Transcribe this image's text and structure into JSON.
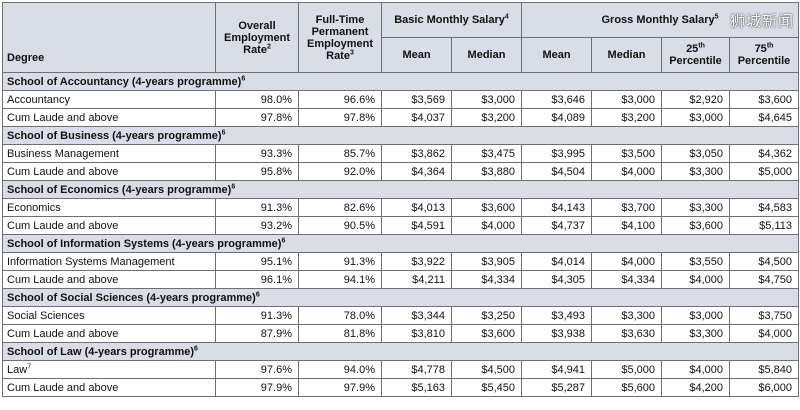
{
  "headers": {
    "degree": "Degree",
    "overall": "Overall Employment Rate",
    "overall_sup": "2",
    "fulltime": "Full-Time Permanent Employment Rate",
    "fulltime_sup": "3",
    "basic": "Basic Monthly Salary",
    "basic_sup": "4",
    "gross": "Gross Monthly Salary",
    "gross_sup": "5",
    "mean": "Mean",
    "median": "Median",
    "p25_num": "25",
    "p25_sup": "th",
    "p75_num": "75",
    "p75_sup": "th",
    "percentile": "Percentile"
  },
  "sections": [
    {
      "title": "School of Accountancy (4-years programme)",
      "sup": "6",
      "rows": [
        {
          "degree": "Accountancy",
          "cells": [
            "98.0%",
            "96.6%",
            "$3,569",
            "$3,000",
            "$3,646",
            "$3,000",
            "$2,920",
            "$3,600"
          ]
        },
        {
          "degree": "Cum Laude and above",
          "cells": [
            "97.8%",
            "97.8%",
            "$4,037",
            "$3,200",
            "$4,089",
            "$3,200",
            "$3,000",
            "$4,645"
          ]
        }
      ]
    },
    {
      "title": "School of Business (4-years programme)",
      "sup": "6",
      "rows": [
        {
          "degree": "Business Management",
          "cells": [
            "93.3%",
            "85.7%",
            "$3,862",
            "$3,475",
            "$3,995",
            "$3,500",
            "$3,050",
            "$4,362"
          ]
        },
        {
          "degree": "Cum Laude and above",
          "cells": [
            "95.8%",
            "92.0%",
            "$4,364",
            "$3,880",
            "$4,504",
            "$4,000",
            "$3,300",
            "$5,000"
          ]
        }
      ]
    },
    {
      "title": "School of Economics (4-years programme)",
      "sup": "6",
      "rows": [
        {
          "degree": "Economics",
          "cells": [
            "91.3%",
            "82.6%",
            "$4,013",
            "$3,600",
            "$4,143",
            "$3,700",
            "$3,300",
            "$4,583"
          ]
        },
        {
          "degree": "Cum Laude and above",
          "cells": [
            "93.2%",
            "90.5%",
            "$4,591",
            "$4,000",
            "$4,737",
            "$4,100",
            "$3,600",
            "$5,113"
          ]
        }
      ]
    },
    {
      "title": "School of Information Systems (4-years programme)",
      "sup": "6",
      "rows": [
        {
          "degree": "Information Systems Management",
          "cells": [
            "95.1%",
            "91.3%",
            "$3,922",
            "$3,905",
            "$4,014",
            "$4,000",
            "$3,550",
            "$4,500"
          ]
        },
        {
          "degree": "Cum Laude and above",
          "cells": [
            "96.1%",
            "94.1%",
            "$4,211",
            "$4,334",
            "$4,305",
            "$4,334",
            "$4,000",
            "$4,750"
          ]
        }
      ]
    },
    {
      "title": "School of Social Sciences (4-years programme)",
      "sup": "6",
      "rows": [
        {
          "degree": "Social Sciences",
          "cells": [
            "91.3%",
            "78.0%",
            "$3,344",
            "$3,250",
            "$3,493",
            "$3,300",
            "$3,000",
            "$3,750"
          ]
        },
        {
          "degree": "Cum Laude and above",
          "cells": [
            "87.9%",
            "81.8%",
            "$3,810",
            "$3,600",
            "$3,938",
            "$3,630",
            "$3,300",
            "$4,000"
          ]
        }
      ]
    },
    {
      "title": "School of Law (4-years programme)",
      "sup": "6",
      "rows": [
        {
          "degree": "Law",
          "degree_sup": "7",
          "cells": [
            "97.6%",
            "94.0%",
            "$4,778",
            "$4,500",
            "$4,941",
            "$5,000",
            "$4,000",
            "$5,840"
          ]
        },
        {
          "degree": "Cum Laude and above",
          "cells": [
            "97.9%",
            "97.9%",
            "$5,163",
            "$5,450",
            "$5,287",
            "$5,600",
            "$4,200",
            "$6,000"
          ]
        }
      ]
    }
  ],
  "watermark": "狮城新闻"
}
